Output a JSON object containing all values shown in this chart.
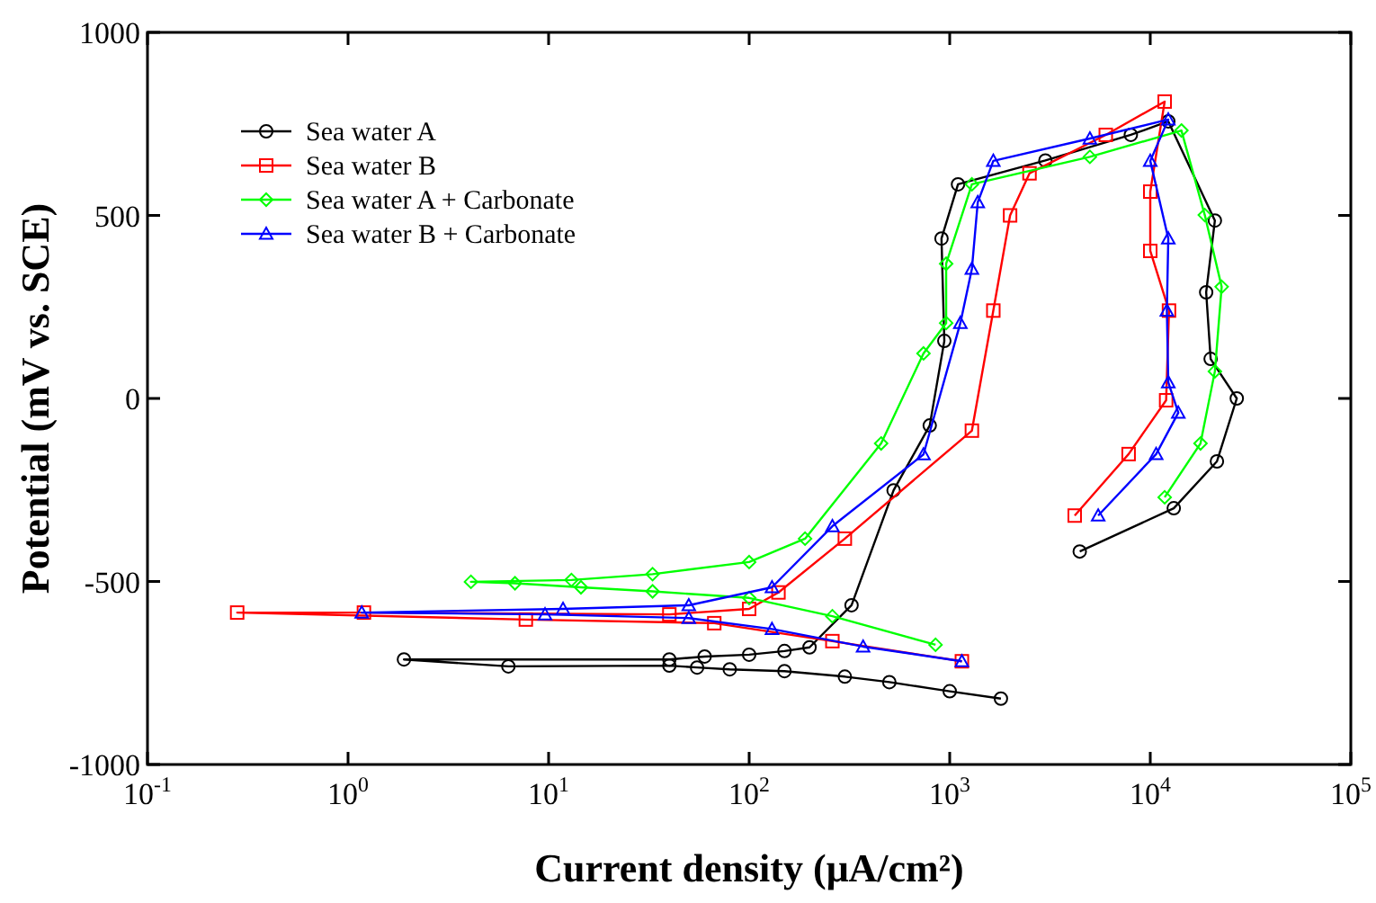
{
  "chart_data": {
    "type": "line",
    "xlabel": "Current density (μA/cm²)",
    "ylabel": "Potential (mV vs. SCE)",
    "log": "x",
    "xlim": [
      0.1,
      100000
    ],
    "xticks": [
      {
        "value": 0.1,
        "label": "10$^{-1}$"
      },
      {
        "value": 1,
        "label": "10$^{0}$"
      },
      {
        "value": 10,
        "label": "10$^{1}$"
      },
      {
        "value": 100,
        "label": "10$^{2}$"
      },
      {
        "value": 1000,
        "label": "10$^{3}$"
      },
      {
        "value": 10000,
        "label": "10$^{4}$"
      },
      {
        "value": 100000,
        "label": "10$^{5}$"
      }
    ],
    "ylim": [
      -1000,
      1000
    ],
    "yticks": [
      -1000,
      -500,
      0,
      500,
      1000
    ],
    "grid": false,
    "legend": "top left",
    "series": [
      {
        "name": "Sea water A",
        "color": "#000000",
        "marker": "circle",
        "x": [
          1800,
          1000,
          500,
          300,
          150,
          80,
          55,
          40,
          6.3,
          1.9,
          40,
          60,
          100,
          150,
          200,
          324,
          525,
          795,
          940,
          910,
          1100,
          3000,
          8000,
          12300,
          21000,
          19000,
          20000,
          27000,
          21500,
          13100,
          4450
        ],
        "values": [
          -820,
          -800,
          -775,
          -760,
          -745,
          -740,
          -735,
          -730,
          -732,
          -713,
          -713,
          -705,
          -700,
          -690,
          -680,
          -565,
          -251,
          -74,
          157,
          437,
          585,
          650,
          720,
          757,
          486,
          290,
          108,
          0,
          -172,
          -300,
          -418
        ]
      },
      {
        "name": "Sea water B",
        "color": "#ff0000",
        "marker": "square",
        "x": [
          1150,
          260,
          67,
          7.7,
          0.28,
          1.2,
          40,
          100,
          140,
          300,
          1290,
          1650,
          2000,
          2500,
          6000,
          11800,
          10000,
          10000,
          12400,
          12000,
          7800,
          4200
        ],
        "values": [
          -718,
          -663,
          -614,
          -604,
          -585,
          -585,
          -590,
          -575,
          -530,
          -383,
          -88,
          240,
          500,
          615,
          720,
          811,
          565,
          403,
          240,
          -5,
          -152,
          -320
        ]
      },
      {
        "name": "Sea water A + Carbonate",
        "color": "#00ff00",
        "marker": "diamond",
        "x": [
          850,
          260,
          100,
          33,
          14.5,
          6.8,
          4.1,
          13,
          33,
          100,
          190,
          455,
          740,
          960,
          960,
          1290,
          5000,
          14300,
          18700,
          22700,
          21000,
          17800,
          11800
        ],
        "values": [
          -673,
          -595,
          -545,
          -527,
          -516,
          -505,
          -501,
          -496,
          -480,
          -447,
          -383,
          -123,
          123,
          206,
          368,
          585,
          660,
          732,
          501,
          305,
          74,
          -123,
          -270
        ]
      },
      {
        "name": "Sea water B + Carbonate",
        "color": "#0000ff",
        "marker": "triangle",
        "x": [
          1150,
          370,
          130,
          50,
          9.6,
          1.17,
          11.8,
          50,
          130,
          260,
          740,
          1130,
          1290,
          1380,
          1650,
          5000,
          12300,
          10000,
          12300,
          12100,
          12300,
          13800,
          10700,
          5500
        ],
        "values": [
          -718,
          -678,
          -630,
          -600,
          -590,
          -585,
          -575,
          -565,
          -516,
          -349,
          -153,
          206,
          354,
          536,
          649,
          710,
          762,
          649,
          437,
          240,
          44,
          -39,
          -152,
          -320
        ]
      }
    ]
  }
}
